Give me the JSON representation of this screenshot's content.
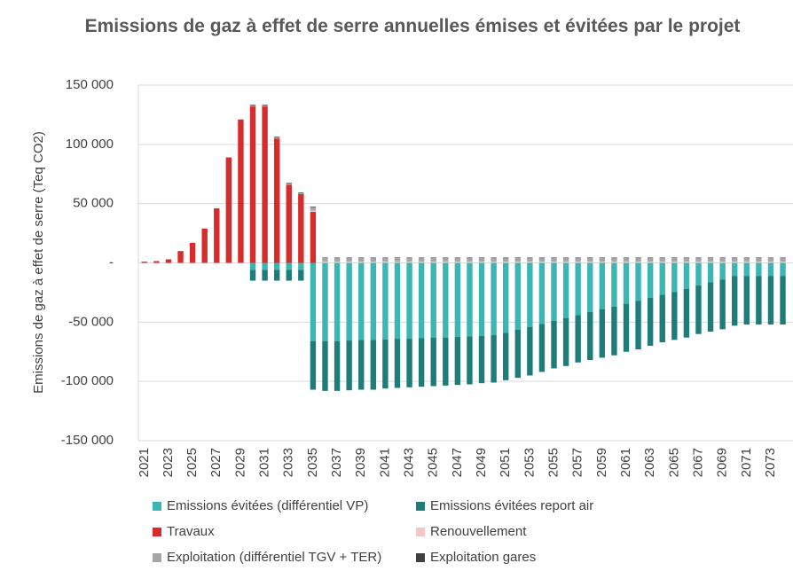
{
  "chart_data": {
    "type": "stacked_bar",
    "title": "Emissions de gaz à effet de serre annuelles émises et évitées par le projet",
    "y_label": "Emissions de gaz à effet de serre (Teq CO2)",
    "categories": [
      "2021",
      null,
      "2023",
      null,
      "2025",
      null,
      "2027",
      null,
      "2029",
      null,
      "2031",
      null,
      "2033",
      null,
      "2035",
      null,
      "2037",
      null,
      "2039",
      null,
      "2041",
      null,
      "2043",
      null,
      "2045",
      null,
      "2047",
      null,
      "2049",
      null,
      "2051",
      null,
      "2053",
      null,
      "2055",
      null,
      "2057",
      null,
      "2059",
      null,
      "2061",
      null,
      "2063",
      null,
      "2065",
      null,
      "2067",
      null,
      "2069",
      null,
      "2071",
      null,
      "2073",
      null
    ],
    "ylim": [
      -150000,
      150000
    ],
    "yticks": [
      {
        "value": -150000,
        "label": "-150 000"
      },
      {
        "value": -100000,
        "label": "-100 000"
      },
      {
        "value": -50000,
        "label": "-50 000"
      },
      {
        "value": 0,
        "label": "-"
      },
      {
        "value": 50000,
        "label": "50 000"
      },
      {
        "value": 100000,
        "label": "100 000"
      },
      {
        "value": 150000,
        "label": "150 000"
      }
    ],
    "grid": true,
    "legend_position": "bottom",
    "series": [
      {
        "name": "Emissions évitées (différentiel VP)",
        "color": "#3cb6b4",
        "values": [
          0,
          0,
          0,
          0,
          0,
          0,
          0,
          0,
          0,
          -6000,
          -6000,
          -6000,
          -6000,
          -6000,
          -66000,
          -66000,
          -66000,
          -65500,
          -65000,
          -65000,
          -64500,
          -64000,
          -64000,
          -63500,
          -63000,
          -63000,
          -62500,
          -62000,
          -61500,
          -61000,
          -59000,
          -56500,
          -54000,
          -51500,
          -49000,
          -46500,
          -44000,
          -41500,
          -39000,
          -37000,
          -34500,
          -32000,
          -29500,
          -27000,
          -24500,
          -22000,
          -19000,
          -16500,
          -14000,
          -11000,
          -11000,
          -11000,
          -11000,
          -11000
        ]
      },
      {
        "name": "Emissions évitées report air",
        "color": "#1e7d78",
        "values": [
          0,
          0,
          0,
          0,
          0,
          0,
          0,
          0,
          0,
          -9000,
          -9000,
          -9000,
          -9000,
          -9000,
          -41000,
          -42000,
          -42000,
          -42000,
          -42000,
          -42000,
          -41500,
          -41500,
          -41000,
          -41000,
          -41000,
          -40500,
          -40500,
          -40500,
          -40000,
          -40000,
          -40000,
          -40500,
          -41000,
          -40500,
          -40000,
          -40500,
          -40000,
          -40500,
          -41000,
          -41000,
          -40500,
          -41000,
          -40500,
          -40000,
          -40500,
          -41000,
          -41000,
          -41500,
          -42000,
          -42000,
          -41000,
          -41000,
          -41000,
          -41000
        ]
      },
      {
        "name": "Travaux",
        "color": "#d62c2c",
        "values": [
          1000,
          1500,
          3000,
          10000,
          17000,
          29000,
          46000,
          89000,
          121000,
          132000,
          132000,
          105000,
          66000,
          58000,
          43000,
          0,
          0,
          0,
          0,
          0,
          0,
          0,
          0,
          0,
          0,
          0,
          0,
          0,
          0,
          0,
          0,
          0,
          0,
          0,
          0,
          0,
          0,
          0,
          0,
          0,
          0,
          0,
          0,
          0,
          0,
          0,
          0,
          0,
          0,
          0,
          0,
          0,
          0,
          0
        ]
      },
      {
        "name": "Renouvellement",
        "color": "#f4c7c7",
        "values": [
          0,
          0,
          0,
          0,
          0,
          0,
          0,
          0,
          0,
          0,
          0,
          0,
          0,
          0,
          1000,
          1000,
          1000,
          1000,
          1000,
          1000,
          1000,
          1000,
          1000,
          1000,
          1000,
          1000,
          1000,
          1000,
          1000,
          1000,
          1000,
          1000,
          1000,
          1000,
          1000,
          1000,
          1000,
          1000,
          1000,
          1000,
          1000,
          1000,
          1000,
          1000,
          1000,
          1000,
          1000,
          1000,
          1000,
          1000,
          1000,
          1000,
          1000,
          1000
        ]
      },
      {
        "name": "Exploitation (différentiel TGV + TER)",
        "color": "#a6a6a6",
        "values": [
          0,
          0,
          0,
          0,
          0,
          0,
          0,
          0,
          0,
          1000,
          1000,
          1000,
          1000,
          1000,
          3000,
          3000,
          3000,
          3000,
          3000,
          3000,
          3000,
          3000,
          3000,
          3000,
          3000,
          3000,
          3000,
          3000,
          3000,
          3000,
          3000,
          3000,
          3000,
          3000,
          3000,
          3000,
          3000,
          3000,
          3000,
          3000,
          3000,
          3000,
          3000,
          3000,
          3000,
          3000,
          3000,
          3000,
          3000,
          3000,
          3000,
          3000,
          3000,
          3000
        ]
      },
      {
        "name": "Exploitation gares",
        "color": "#404040",
        "values": [
          0,
          0,
          0,
          0,
          0,
          0,
          0,
          0,
          0,
          500,
          500,
          500,
          500,
          500,
          500,
          500,
          500,
          500,
          500,
          500,
          500,
          500,
          500,
          500,
          500,
          500,
          500,
          500,
          500,
          500,
          500,
          500,
          500,
          500,
          500,
          500,
          500,
          500,
          500,
          500,
          500,
          500,
          500,
          500,
          500,
          500,
          500,
          500,
          500,
          500,
          500,
          500,
          500,
          500
        ]
      }
    ]
  }
}
